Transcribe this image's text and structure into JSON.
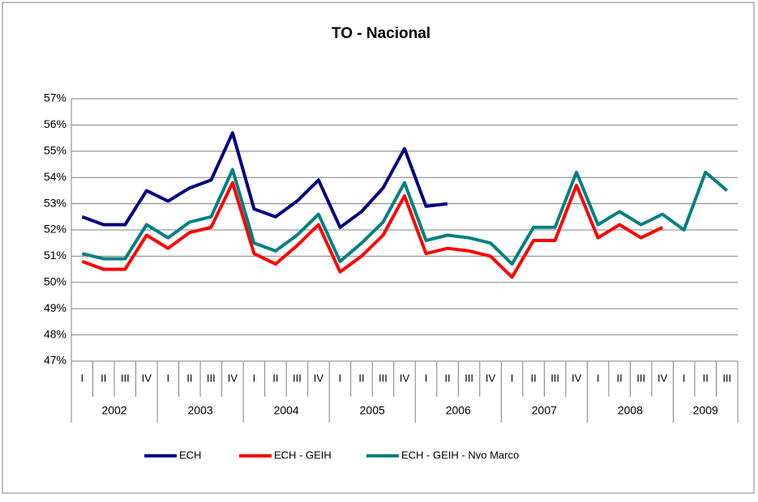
{
  "chart_data": {
    "type": "line",
    "title": "TO - Nacional",
    "categories": [
      "I",
      "II",
      "III",
      "IV",
      "I",
      "II",
      "III",
      "IV",
      "I",
      "II",
      "III",
      "IV",
      "I",
      "II",
      "III",
      "IV",
      "I",
      "II",
      "III",
      "IV",
      "I",
      "II",
      "III",
      "IV",
      "I",
      "II",
      "III",
      "IV",
      "I",
      "II",
      "III"
    ],
    "groups": [
      "2002",
      "2003",
      "2004",
      "2005",
      "2006",
      "2007",
      "2008",
      "2009"
    ],
    "series": [
      {
        "name": "ECH",
        "color": "#000080",
        "values": [
          52.5,
          52.2,
          52.2,
          53.5,
          53.1,
          53.6,
          53.9,
          55.7,
          52.8,
          52.5,
          53.1,
          53.9,
          52.1,
          52.7,
          53.6,
          55.1,
          52.9,
          53.0,
          null,
          null,
          null,
          null,
          null,
          null,
          null,
          null,
          null,
          null,
          null,
          null,
          null
        ]
      },
      {
        "name": "ECH - GEIH",
        "color": "#ff0000",
        "values": [
          50.8,
          50.5,
          50.5,
          51.8,
          51.3,
          51.9,
          52.1,
          53.8,
          51.1,
          50.7,
          51.4,
          52.2,
          50.4,
          51.0,
          51.8,
          53.3,
          51.1,
          51.3,
          51.2,
          51.0,
          50.2,
          51.6,
          51.6,
          53.7,
          51.7,
          52.2,
          51.7,
          52.1,
          null,
          null,
          null
        ]
      },
      {
        "name": "ECH - GEIH - Nvo Marco",
        "color": "#008080",
        "values": [
          51.1,
          50.9,
          50.9,
          52.2,
          51.7,
          52.3,
          52.5,
          54.3,
          51.5,
          51.2,
          51.8,
          52.6,
          50.8,
          51.5,
          52.3,
          53.8,
          51.6,
          51.8,
          51.7,
          51.5,
          50.7,
          52.1,
          52.1,
          54.2,
          52.2,
          52.7,
          52.2,
          52.6,
          52.0,
          54.2,
          53.5
        ]
      }
    ],
    "ylim": [
      47,
      57
    ],
    "yticks": [
      {
        "value": 47,
        "label": "47%"
      },
      {
        "value": 48,
        "label": "48%"
      },
      {
        "value": 49,
        "label": "49%"
      },
      {
        "value": 50,
        "label": "50%"
      },
      {
        "value": 51,
        "label": "51%"
      },
      {
        "value": 52,
        "label": "52%"
      },
      {
        "value": 53,
        "label": "53%"
      },
      {
        "value": 54,
        "label": "54%"
      },
      {
        "value": 55,
        "label": "55%"
      },
      {
        "value": 56,
        "label": "56%"
      },
      {
        "value": 57,
        "label": "57%"
      }
    ],
    "grid": true,
    "legend": "bottom"
  }
}
